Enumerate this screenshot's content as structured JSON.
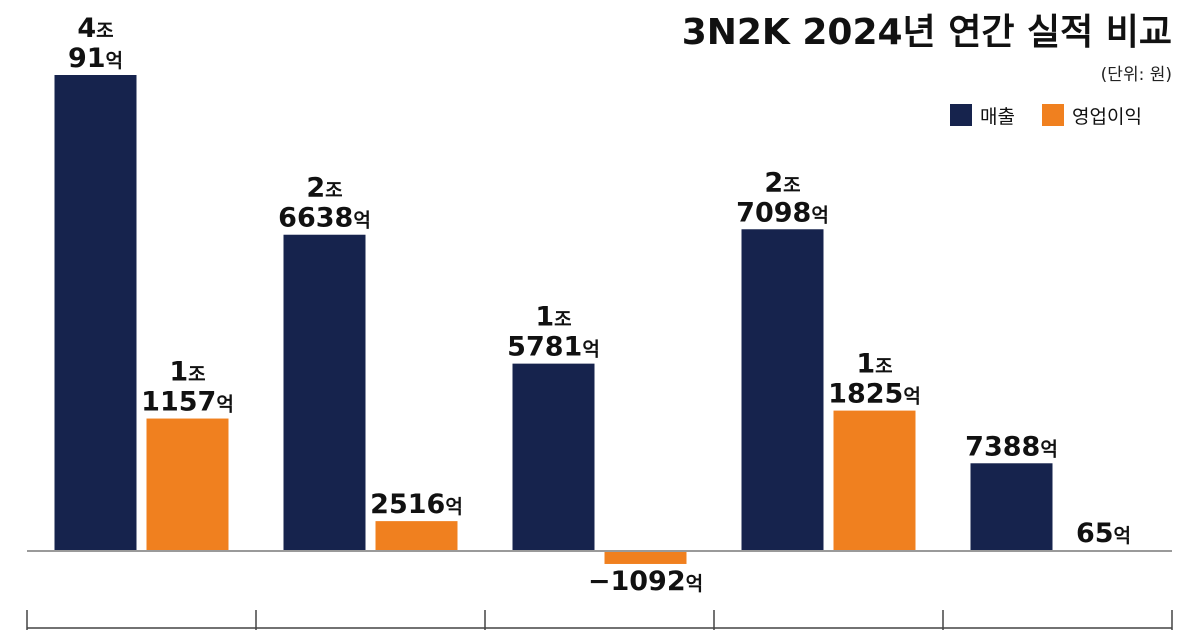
{
  "chart_data": {
    "type": "bar",
    "title": "3N2K 2024년 연간 실적 비교",
    "unit_note": "(단위: 원)",
    "legend_position": "top-right",
    "categories": [
      "",
      "",
      "",
      "",
      ""
    ],
    "series": [
      {
        "name": "매출",
        "color": "#16234d",
        "values": [
          40091,
          26638,
          15781,
          27098,
          7388
        ],
        "labels": [
          [
            "4조",
            "91억"
          ],
          [
            "2조",
            "6638억"
          ],
          [
            "1조",
            "5781억"
          ],
          [
            "2조",
            "7098억"
          ],
          [
            "7388억"
          ]
        ]
      },
      {
        "name": "영업이익",
        "color": "#f0801f",
        "values": [
          11157,
          2516,
          -1092,
          11825,
          65
        ],
        "labels": [
          [
            "1조",
            "1157억"
          ],
          [
            "2516억"
          ],
          [
            "−1092억"
          ],
          [
            "1조",
            "1825억"
          ],
          [
            "65억"
          ]
        ]
      }
    ],
    "value_unit": "억원",
    "ylim": [
      -1092,
      40091
    ],
    "grid": false
  }
}
